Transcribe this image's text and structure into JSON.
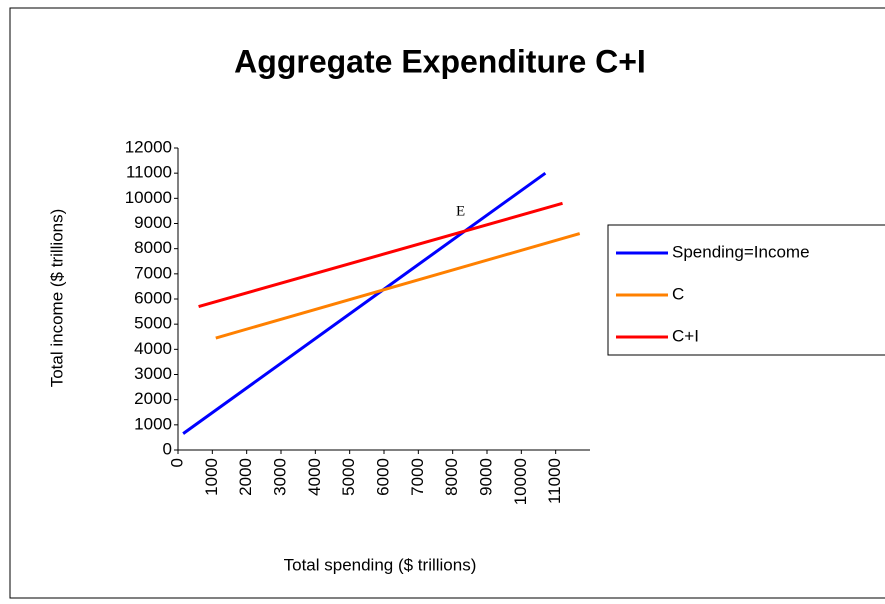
{
  "chart_data": {
    "type": "line",
    "title": "Aggregate Expenditure C+I",
    "x_label": "Total spending ($ trillions)",
    "y_label": "Total income ($ trillions)",
    "xlim": [
      0,
      12000
    ],
    "xticks": [
      0,
      1000,
      2000,
      3000,
      4000,
      5000,
      6000,
      7000,
      8000,
      9000,
      10000,
      11000
    ],
    "ylim": [
      0,
      12000
    ],
    "yticks": [
      0,
      1000,
      2000,
      3000,
      4000,
      5000,
      6000,
      7000,
      8000,
      9000,
      10000,
      11000,
      12000
    ],
    "grid": false,
    "legend": "right",
    "series": [
      {
        "name": "Spending=Income",
        "color": "#0000ff",
        "x": [
          150,
          10700
        ],
        "values": [
          650,
          11000
        ]
      },
      {
        "name": "C",
        "color": "#ff8000",
        "x": [
          1100,
          11700
        ],
        "values": [
          4450,
          8600
        ]
      },
      {
        "name": "C+I",
        "color": "#ff0000",
        "x": [
          600,
          11200
        ],
        "values": [
          5700,
          9800
        ]
      }
    ],
    "annotations": [
      "E"
    ]
  }
}
